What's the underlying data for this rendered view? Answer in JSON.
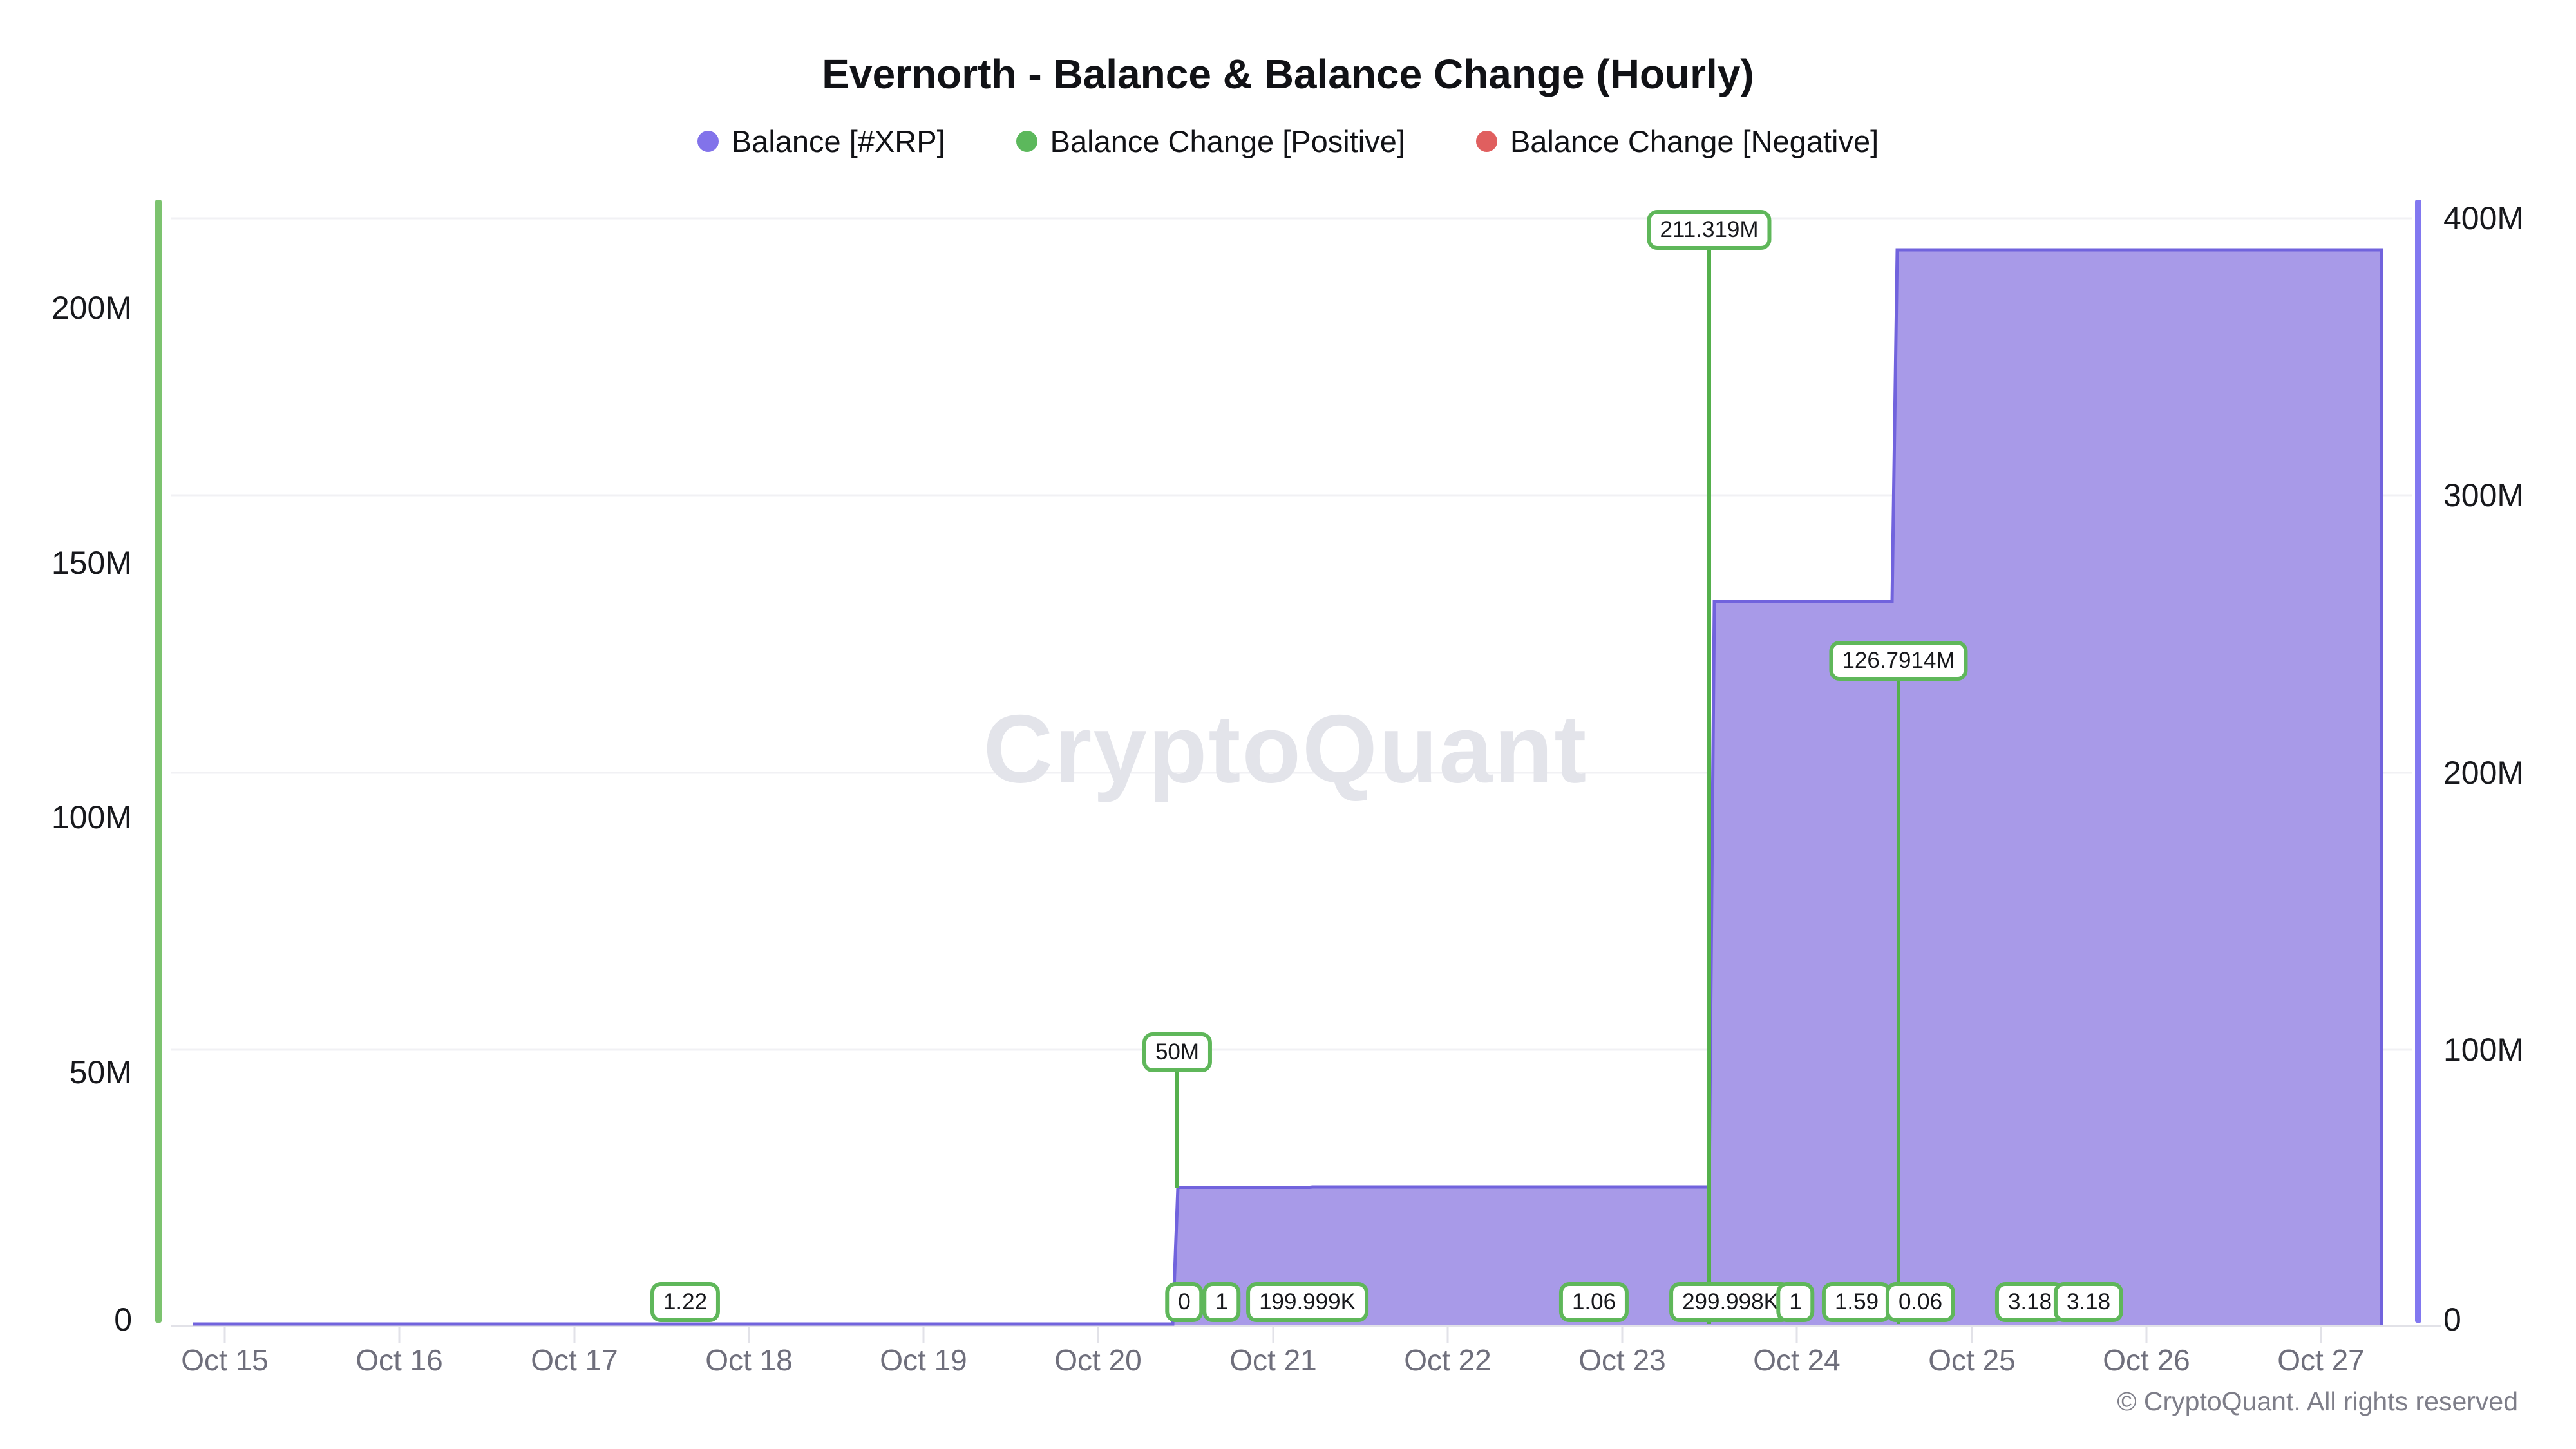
{
  "title": "Evernorth - Balance & Balance Change (Hourly)",
  "legend": [
    {
      "label": "Balance [#XRP]",
      "color": "#8273ea"
    },
    {
      "label": "Balance Change [Positive]",
      "color": "#5cb85c"
    },
    {
      "label": "Balance Change [Negative]",
      "color": "#e05f5f"
    }
  ],
  "watermark": "CryptoQuant",
  "footer": "© CryptoQuant. All rights reserved",
  "colors": {
    "balance_area_fill": "#a89ae8",
    "balance_area_line": "#7163dd",
    "balance_axis_line": "#8278f0",
    "change_axis_line": "#7cc36f",
    "change_bar": "#55b04d",
    "badge_border": "#5fb75a",
    "gridline": "#f1f1f4",
    "x_label": "#6f6f7c"
  },
  "chart_data": {
    "type": "area",
    "title": "Evernorth - Balance & Balance Change (Hourly)",
    "interval": "Hourly",
    "x_axis": {
      "tick_labels": [
        "Oct 15",
        "Oct 16",
        "Oct 17",
        "Oct 18",
        "Oct 19",
        "Oct 20",
        "Oct 21",
        "Oct 22",
        "Oct 23",
        "Oct 24",
        "Oct 25",
        "Oct 26",
        "Oct 27"
      ]
    },
    "y_left": {
      "series": "Balance Change [Positive/Negative]",
      "ticks": [
        {
          "v": 0,
          "label": "0"
        },
        {
          "v": 50,
          "label": "50M"
        },
        {
          "v": 100,
          "label": "100M"
        },
        {
          "v": 150,
          "label": "150M"
        },
        {
          "v": 200,
          "label": "200M"
        }
      ],
      "range_m": [
        0,
        218
      ]
    },
    "y_right": {
      "series": "Balance [#XRP]",
      "ticks": [
        {
          "v": 0,
          "label": "0"
        },
        {
          "v": 100,
          "label": "100M"
        },
        {
          "v": 200,
          "label": "200M"
        },
        {
          "v": 300,
          "label": "300M"
        },
        {
          "v": 400,
          "label": "400M"
        }
      ],
      "range_m": [
        0,
        400
      ]
    },
    "balance_series": {
      "name": "Balance [#XRP]",
      "axis": "right",
      "units": "XRP (millions)",
      "steps_m": [
        {
          "t": -0.18,
          "v": 0
        },
        {
          "t": 5.428,
          "v": 50.2
        },
        {
          "t": 6.197,
          "v": 50.4
        },
        {
          "t": 8.498,
          "v": 261.72
        },
        {
          "t": 9.545,
          "v": 388.51
        }
      ],
      "end_t": 12.345,
      "final_value_m": 388.51
    },
    "change_events": [
      {
        "t": 2.636,
        "label": "1.22",
        "value_xrp": 1.22
      },
      {
        "t": 5.452,
        "label": "50M",
        "value_xrp": 50000000,
        "big": true,
        "short_bar": true
      },
      {
        "t": 5.493,
        "label": "0",
        "value_xrp": 0
      },
      {
        "t": 5.707,
        "label": "1",
        "value_xrp": 1
      },
      {
        "t": 6.197,
        "label": "199.999K",
        "value_xrp": 199999
      },
      {
        "t": 7.838,
        "label": "1.06",
        "value_xrp": 1.06
      },
      {
        "t": 8.498,
        "label": "211.319M",
        "value_xrp": 211319000,
        "big": true
      },
      {
        "t": 8.62,
        "label": "299.998K",
        "value_xrp": 299998
      },
      {
        "t": 8.992,
        "label": "1",
        "value_xrp": 1
      },
      {
        "t": 9.342,
        "label": "1.59",
        "value_xrp": 1.59
      },
      {
        "t": 9.582,
        "label": "126.7914M",
        "value_xrp": 126791400,
        "big": true
      },
      {
        "t": 9.707,
        "label": "0.06",
        "value_xrp": 0.06
      },
      {
        "t": 10.334,
        "label": "3.18",
        "value_xrp": 3.18
      },
      {
        "t": 10.669,
        "label": "3.18",
        "value_xrp": 3.18
      }
    ]
  }
}
